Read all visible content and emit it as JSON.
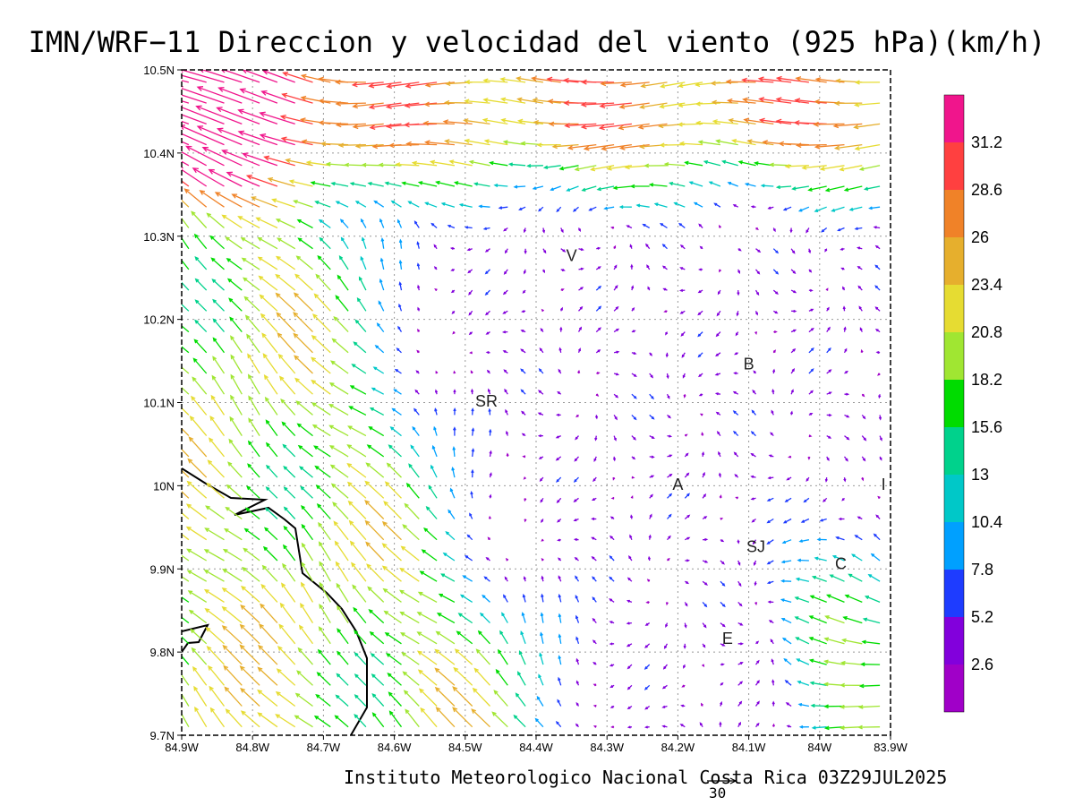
{
  "title": "IMN/WRF−11 Direccion y velocidad del viento (925 hPa)(km/h)",
  "footer": "Instituto Meteorologico Nacional Costa Rica 03Z29JUL2025",
  "reference_vector_label": "30",
  "axes": {
    "lon_min": -84.9,
    "lon_max": -83.9,
    "lat_min": 9.7,
    "lat_max": 10.5,
    "x_ticks": [
      "84.9W",
      "84.8W",
      "84.7W",
      "84.6W",
      "84.5W",
      "84.4W",
      "84.3W",
      "84.2W",
      "84.1W",
      "84W",
      "83.9W"
    ],
    "y_ticks": [
      "10.5N",
      "10.4N",
      "10.3N",
      "10.2N",
      "10.1N",
      "10N",
      "9.9N",
      "9.8N",
      "9.7N"
    ],
    "grid": true
  },
  "colorbar": {
    "labels": [
      "31.2",
      "28.6",
      "26",
      "23.4",
      "20.8",
      "18.2",
      "15.6",
      "13",
      "10.4",
      "7.8",
      "5.2",
      "2.6"
    ],
    "colors": [
      "#f0158c",
      "#ff4040",
      "#f08228",
      "#e6af2d",
      "#e6dc32",
      "#a0e632",
      "#00dc00",
      "#00d28c",
      "#00c8c8",
      "#00a0ff",
      "#1e3cff",
      "#8200dc",
      "#a000c8"
    ]
  },
  "places": [
    {
      "label": "V",
      "lon": -84.35,
      "lat": 10.27
    },
    {
      "label": "B",
      "lon": -84.1,
      "lat": 10.14
    },
    {
      "label": "SR",
      "lon": -84.47,
      "lat": 10.095
    },
    {
      "label": "A",
      "lon": -84.2,
      "lat": 9.995
    },
    {
      "label": "I",
      "lon": -83.91,
      "lat": 9.995
    },
    {
      "label": "SJ",
      "lon": -84.09,
      "lat": 9.92
    },
    {
      "label": "C",
      "lon": -83.97,
      "lat": 9.9
    },
    {
      "label": "E",
      "lon": -84.13,
      "lat": 9.81
    }
  ],
  "wind_field_summary": {
    "north_band": {
      "direction": "from east",
      "speed_kmh": 26
    },
    "southwest_pacific_slope": {
      "direction": "from northwest/southeast flow toward northwest",
      "speed_kmh": 21
    },
    "central_valley": {
      "speed_kmh": 5
    }
  }
}
